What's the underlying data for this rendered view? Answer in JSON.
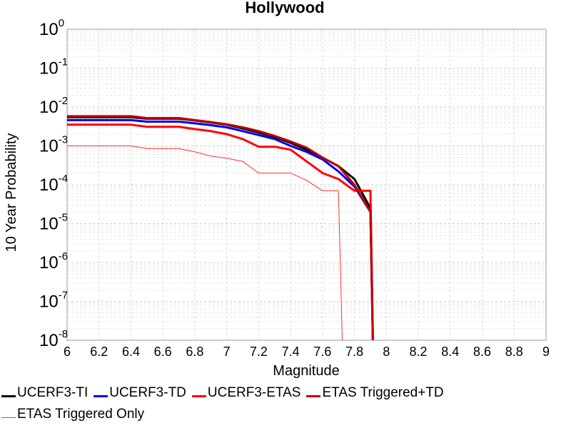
{
  "chart_data": {
    "type": "line",
    "title": "Hollywood",
    "xlabel": "Magnitude",
    "ylabel": "10 Year Probability",
    "xlim": [
      6,
      9
    ],
    "ylim": [
      1e-08,
      1
    ],
    "yscale": "log",
    "grid": true,
    "legend_position": "bottom",
    "x_ticks": [
      "6",
      "6.2",
      "6.4",
      "6.6",
      "6.8",
      "7",
      "7.2",
      "7.4",
      "7.6",
      "7.8",
      "8",
      "8.2",
      "8.4",
      "8.6",
      "8.8",
      "9"
    ],
    "y_ticks": [
      {
        "value": 1.0,
        "base": "10",
        "exp": "0"
      },
      {
        "value": 0.1,
        "base": "10",
        "exp": "-1"
      },
      {
        "value": 0.01,
        "base": "10",
        "exp": "-2"
      },
      {
        "value": 0.001,
        "base": "10",
        "exp": "-3"
      },
      {
        "value": 0.0001,
        "base": "10",
        "exp": "-4"
      },
      {
        "value": 1e-05,
        "base": "10",
        "exp": "-5"
      },
      {
        "value": 1e-06,
        "base": "10",
        "exp": "-6"
      },
      {
        "value": 1e-07,
        "base": "10",
        "exp": "-7"
      },
      {
        "value": 1e-08,
        "base": "10",
        "exp": "-8"
      }
    ],
    "series": [
      {
        "name": "UCERF3-TI",
        "color": "#000000",
        "width": 3,
        "x": [
          6.0,
          6.1,
          6.2,
          6.3,
          6.4,
          6.5,
          6.6,
          6.7,
          6.8,
          6.9,
          7.0,
          7.1,
          7.2,
          7.3,
          7.4,
          7.5,
          7.6,
          7.7,
          7.8,
          7.9,
          7.92
        ],
        "y": [
          0.0055,
          0.0055,
          0.0055,
          0.0055,
          0.0055,
          0.005,
          0.005,
          0.005,
          0.0045,
          0.004,
          0.0035,
          0.0028,
          0.0022,
          0.0017,
          0.0012,
          0.0008,
          0.0005,
          0.0003,
          0.00014,
          2.5e-05,
          1e-09
        ]
      },
      {
        "name": "UCERF3-TD",
        "color": "#0000ee",
        "width": 3,
        "x": [
          6.0,
          6.1,
          6.2,
          6.3,
          6.4,
          6.5,
          6.6,
          6.7,
          6.8,
          6.9,
          7.0,
          7.1,
          7.2,
          7.3,
          7.4,
          7.5,
          7.6,
          7.7,
          7.8,
          7.9,
          7.92
        ],
        "y": [
          0.0046,
          0.0046,
          0.0046,
          0.0046,
          0.0046,
          0.0042,
          0.0042,
          0.0042,
          0.0038,
          0.0034,
          0.003,
          0.0024,
          0.0019,
          0.0015,
          0.001,
          0.0007,
          0.00045,
          0.00022,
          9e-05,
          2e-05,
          1e-09
        ]
      },
      {
        "name": "UCERF3-ETAS",
        "color": "#ff0000",
        "width": 3,
        "x": [
          6.0,
          6.1,
          6.2,
          6.3,
          6.4,
          6.5,
          6.6,
          6.7,
          6.8,
          6.9,
          7.0,
          7.1,
          7.2,
          7.3,
          7.4,
          7.5,
          7.6,
          7.7,
          7.8,
          7.85,
          7.9,
          7.92
        ],
        "y": [
          0.0035,
          0.0035,
          0.0035,
          0.0035,
          0.0035,
          0.0031,
          0.0031,
          0.0031,
          0.0027,
          0.0024,
          0.002,
          0.0015,
          0.00095,
          0.00095,
          0.0008,
          0.0004,
          0.0002,
          0.00014,
          7e-05,
          7e-05,
          7e-05,
          1e-09
        ]
      },
      {
        "name": "ETAS Triggered+TD",
        "color": "#c00000",
        "width": 3,
        "x": [
          6.0,
          6.1,
          6.2,
          6.3,
          6.4,
          6.5,
          6.6,
          6.7,
          6.8,
          6.9,
          7.0,
          7.1,
          7.2,
          7.3,
          7.4,
          7.5,
          7.6,
          7.7,
          7.8,
          7.9,
          7.92
        ],
        "y": [
          0.0058,
          0.0058,
          0.0058,
          0.0058,
          0.0058,
          0.0052,
          0.0052,
          0.0052,
          0.0046,
          0.0041,
          0.0036,
          0.003,
          0.0024,
          0.0018,
          0.0013,
          0.0009,
          0.0005,
          0.0003,
          0.0001,
          2e-05,
          1e-09
        ]
      },
      {
        "name": "ETAS Triggered Only",
        "color": "#ff3030",
        "width": 1,
        "x": [
          6.0,
          6.1,
          6.2,
          6.3,
          6.4,
          6.5,
          6.6,
          6.7,
          6.8,
          6.9,
          7.0,
          7.1,
          7.2,
          7.3,
          7.4,
          7.5,
          7.6,
          7.7,
          7.73
        ],
        "y": [
          0.001,
          0.001,
          0.001,
          0.001,
          0.001,
          0.00085,
          0.00085,
          0.00085,
          0.0007,
          0.00055,
          0.00048,
          0.0004,
          0.0002,
          0.0002,
          0.0002,
          0.00013,
          7e-05,
          7e-05,
          1e-09
        ]
      }
    ]
  }
}
